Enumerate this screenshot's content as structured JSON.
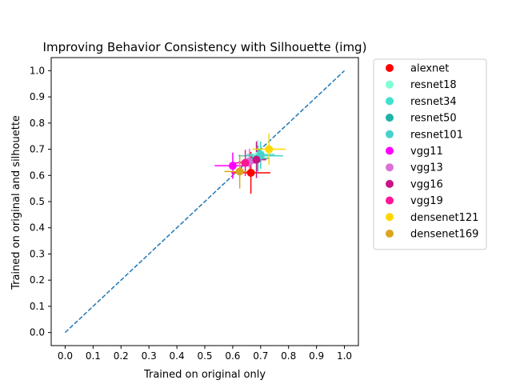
{
  "chart_data": {
    "type": "scatter",
    "title": "Improving Behavior Consistency with Silhouette (img)",
    "xlabel": "Trained on original only",
    "ylabel": "Trained on original and silhouette",
    "xlim": [
      -0.05,
      1.05
    ],
    "ylim": [
      -0.05,
      1.05
    ],
    "xticks": [
      "0.0",
      "0.1",
      "0.2",
      "0.3",
      "0.4",
      "0.5",
      "0.6",
      "0.7",
      "0.8",
      "0.9",
      "1.0"
    ],
    "yticks": [
      "0.0",
      "0.1",
      "0.2",
      "0.3",
      "0.4",
      "0.5",
      "0.6",
      "0.7",
      "0.8",
      "0.9",
      "1.0"
    ],
    "grid": false,
    "legend_position": "outside-right",
    "reference_line": {
      "x": [
        0,
        1
      ],
      "y": [
        0,
        1
      ],
      "style": "dashed",
      "color": "#1f77b4"
    },
    "series": [
      {
        "name": "alexnet",
        "color": "#ff0000",
        "x": 0.665,
        "y": 0.61,
        "xerr": 0.07,
        "yerr": 0.08
      },
      {
        "name": "resnet18",
        "color": "#7fffd4",
        "x": 0.69,
        "y": 0.675,
        "xerr": 0.06,
        "yerr": 0.06
      },
      {
        "name": "resnet34",
        "color": "#40e0d0",
        "x": 0.7,
        "y": 0.68,
        "xerr": 0.05,
        "yerr": 0.05
      },
      {
        "name": "resnet50",
        "color": "#20b2aa",
        "x": 0.69,
        "y": 0.665,
        "xerr": 0.04,
        "yerr": 0.05
      },
      {
        "name": "resnet101",
        "color": "#48d1cc",
        "x": 0.7,
        "y": 0.675,
        "xerr": 0.08,
        "yerr": 0.05
      },
      {
        "name": "vgg11",
        "color": "#ff00ff",
        "x": 0.6,
        "y": 0.637,
        "xerr": 0.065,
        "yerr": 0.05
      },
      {
        "name": "vgg13",
        "color": "#da70d6",
        "x": 0.66,
        "y": 0.652,
        "xerr": 0.04,
        "yerr": 0.05
      },
      {
        "name": "vgg16",
        "color": "#c71585",
        "x": 0.685,
        "y": 0.66,
        "xerr": 0.035,
        "yerr": 0.07
      },
      {
        "name": "vgg19",
        "color": "#ff1493",
        "x": 0.645,
        "y": 0.648,
        "xerr": 0.04,
        "yerr": 0.05
      },
      {
        "name": "densenet121",
        "color": "#ffd700",
        "x": 0.73,
        "y": 0.7,
        "xerr": 0.06,
        "yerr": 0.06
      },
      {
        "name": "densenet169",
        "color": "#daa520",
        "x": 0.625,
        "y": 0.615,
        "xerr": 0.055,
        "yerr": 0.065
      }
    ]
  }
}
